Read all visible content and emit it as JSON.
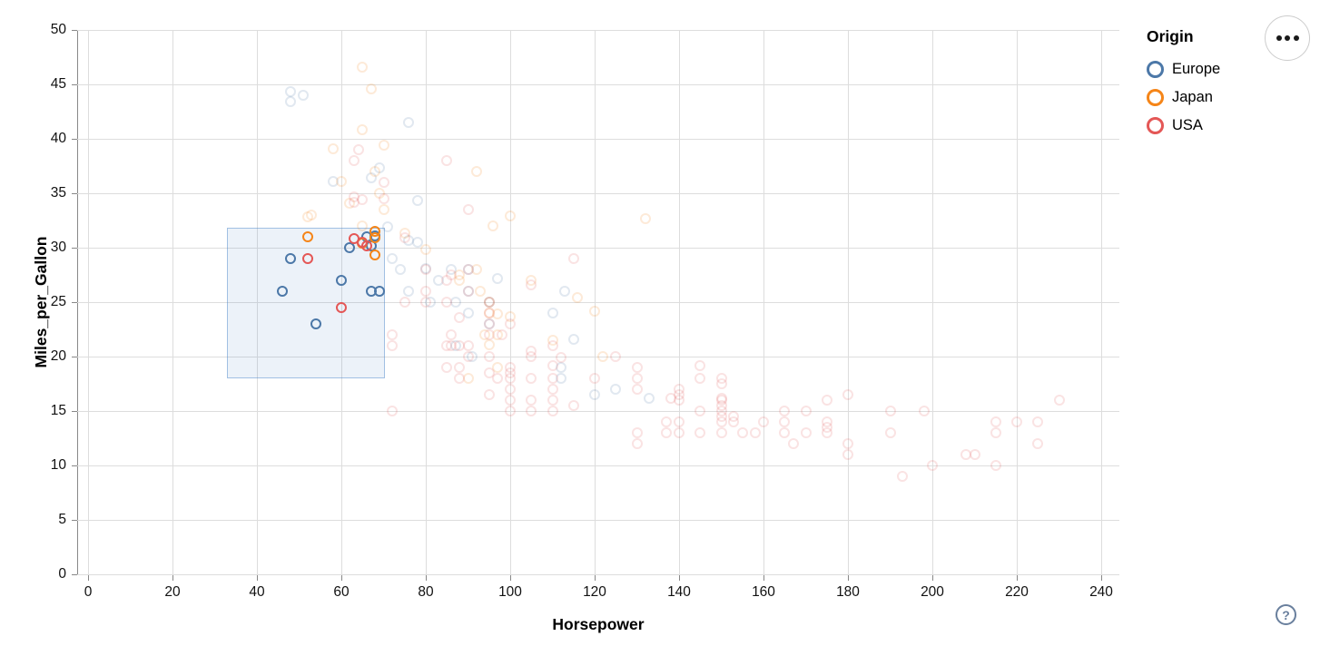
{
  "legend": {
    "title": "Origin",
    "items": [
      {
        "label": "Europe",
        "color": "#4c78a8"
      },
      {
        "label": "Japan",
        "color": "#f58518"
      },
      {
        "label": "USA",
        "color": "#e45756"
      }
    ]
  },
  "controls": {
    "menu_button": "ellipsis-menu",
    "help_label": "?"
  },
  "colors": {
    "europe": "#4c78a8",
    "japan": "#f58518",
    "usa": "#e45756",
    "grid": "#dddddd",
    "axis": "#888888",
    "brush_fill": "rgba(70,130,200,0.10)",
    "brush_stroke": "rgba(70,130,200,0.45)",
    "help_icon": "#697f9d"
  },
  "chart_data": {
    "type": "scatter",
    "title": "",
    "xlabel": "Horsepower",
    "ylabel": "Miles_per_Gallon",
    "xlim": [
      0,
      240
    ],
    "ylim": [
      0,
      50
    ],
    "x_ticks": [
      0,
      20,
      40,
      60,
      80,
      100,
      120,
      140,
      160,
      180,
      200,
      220,
      240
    ],
    "y_ticks": [
      0,
      5,
      10,
      15,
      20,
      25,
      30,
      35,
      40,
      45,
      50
    ],
    "grid": true,
    "legend_position": "top-right",
    "series": [
      {
        "name": "Europe",
        "color": "#4c78a8"
      },
      {
        "name": "Japan",
        "color": "#f58518"
      },
      {
        "name": "USA",
        "color": "#e45756"
      }
    ],
    "brush_selection": {
      "x": [
        33,
        70
      ],
      "y": [
        18.2,
        31.8
      ]
    },
    "point_format": [
      "horsepower",
      "miles_per_gallon",
      "origin(E|J|U)",
      "selected(1|0)"
    ],
    "points": [
      [
        46,
        26,
        "E",
        1
      ],
      [
        48,
        29,
        "E",
        1
      ],
      [
        54,
        23,
        "E",
        1
      ],
      [
        60,
        27,
        "E",
        1
      ],
      [
        62,
        30,
        "E",
        1
      ],
      [
        66,
        31,
        "E",
        1
      ],
      [
        67,
        30.2,
        "E",
        1
      ],
      [
        67,
        26,
        "E",
        1
      ],
      [
        68,
        31.1,
        "E",
        1
      ],
      [
        69,
        26,
        "E",
        1
      ],
      [
        52,
        31,
        "J",
        1
      ],
      [
        65,
        30.4,
        "J",
        1
      ],
      [
        68,
        31.5,
        "J",
        1
      ],
      [
        68,
        30.9,
        "J",
        1
      ],
      [
        68,
        29.3,
        "J",
        1
      ],
      [
        52,
        29,
        "U",
        1
      ],
      [
        60,
        24.5,
        "U",
        1
      ],
      [
        63,
        30.8,
        "U",
        1
      ],
      [
        65,
        30.5,
        "U",
        1
      ],
      [
        66,
        30.2,
        "U",
        1
      ],
      [
        48,
        44.3,
        "E",
        0
      ],
      [
        48,
        43.4,
        "E",
        0
      ],
      [
        51,
        44,
        "E",
        0
      ],
      [
        58,
        36.1,
        "E",
        0
      ],
      [
        67,
        36.4,
        "E",
        0
      ],
      [
        69,
        37.3,
        "E",
        0
      ],
      [
        71,
        31.9,
        "E",
        0
      ],
      [
        72,
        29,
        "E",
        0
      ],
      [
        74,
        28,
        "E",
        0
      ],
      [
        76,
        41.5,
        "E",
        0
      ],
      [
        76,
        30.7,
        "E",
        0
      ],
      [
        76,
        26,
        "E",
        0
      ],
      [
        78,
        34.3,
        "E",
        0
      ],
      [
        78,
        30.5,
        "E",
        0
      ],
      [
        80,
        28.1,
        "E",
        0
      ],
      [
        81,
        25,
        "E",
        0
      ],
      [
        83,
        27,
        "E",
        0
      ],
      [
        86,
        28,
        "E",
        0
      ],
      [
        87,
        25,
        "E",
        0
      ],
      [
        87,
        21,
        "E",
        0
      ],
      [
        90,
        24,
        "E",
        0
      ],
      [
        90,
        26,
        "E",
        0
      ],
      [
        90,
        28,
        "E",
        0
      ],
      [
        91,
        20,
        "E",
        0
      ],
      [
        95,
        23,
        "E",
        0
      ],
      [
        95,
        25,
        "E",
        0
      ],
      [
        97,
        27.2,
        "E",
        0
      ],
      [
        110,
        24,
        "E",
        0
      ],
      [
        112,
        18,
        "E",
        0
      ],
      [
        112,
        19,
        "E",
        0
      ],
      [
        113,
        26,
        "E",
        0
      ],
      [
        115,
        21.6,
        "E",
        0
      ],
      [
        120,
        16.5,
        "E",
        0
      ],
      [
        125,
        17,
        "E",
        0
      ],
      [
        133,
        16.2,
        "E",
        0
      ],
      [
        52,
        32.8,
        "J",
        0
      ],
      [
        53,
        33,
        "J",
        0
      ],
      [
        58,
        39.1,
        "J",
        0
      ],
      [
        60,
        36.1,
        "J",
        0
      ],
      [
        62,
        34.1,
        "J",
        0
      ],
      [
        65,
        46.6,
        "J",
        0
      ],
      [
        65,
        40.8,
        "J",
        0
      ],
      [
        65,
        32,
        "J",
        0
      ],
      [
        67,
        44.6,
        "J",
        0
      ],
      [
        68,
        37,
        "J",
        0
      ],
      [
        69,
        35,
        "J",
        0
      ],
      [
        70,
        39.4,
        "J",
        0
      ],
      [
        70,
        33.5,
        "J",
        0
      ],
      [
        75,
        31.3,
        "J",
        0
      ],
      [
        80,
        29.8,
        "J",
        0
      ],
      [
        88,
        27,
        "J",
        0
      ],
      [
        88,
        27.5,
        "J",
        0
      ],
      [
        90,
        18,
        "J",
        0
      ],
      [
        92,
        37,
        "J",
        0
      ],
      [
        92,
        28,
        "J",
        0
      ],
      [
        93,
        26,
        "J",
        0
      ],
      [
        94,
        22,
        "J",
        0
      ],
      [
        95,
        24,
        "J",
        0
      ],
      [
        95,
        25,
        "J",
        0
      ],
      [
        95,
        21.1,
        "J",
        0
      ],
      [
        96,
        32,
        "J",
        0
      ],
      [
        97,
        23.9,
        "J",
        0
      ],
      [
        97,
        22,
        "J",
        0
      ],
      [
        97,
        19,
        "J",
        0
      ],
      [
        100,
        32.9,
        "J",
        0
      ],
      [
        100,
        23.7,
        "J",
        0
      ],
      [
        105,
        27,
        "J",
        0
      ],
      [
        110,
        21.5,
        "J",
        0
      ],
      [
        116,
        25.4,
        "J",
        0
      ],
      [
        120,
        24.2,
        "J",
        0
      ],
      [
        122,
        20,
        "J",
        0
      ],
      [
        132,
        32.7,
        "J",
        0
      ],
      [
        63,
        38,
        "U",
        0
      ],
      [
        63,
        34.7,
        "U",
        0
      ],
      [
        63,
        34.2,
        "U",
        0
      ],
      [
        64,
        39,
        "U",
        0
      ],
      [
        65,
        34.4,
        "U",
        0
      ],
      [
        70,
        36,
        "U",
        0
      ],
      [
        70,
        34.5,
        "U",
        0
      ],
      [
        72,
        22,
        "U",
        0
      ],
      [
        72,
        21,
        "U",
        0
      ],
      [
        72,
        15,
        "U",
        0
      ],
      [
        75,
        30.9,
        "U",
        0
      ],
      [
        75,
        25,
        "U",
        0
      ],
      [
        80,
        25,
        "U",
        0
      ],
      [
        80,
        26,
        "U",
        0
      ],
      [
        80,
        28,
        "U",
        0
      ],
      [
        85,
        38,
        "U",
        0
      ],
      [
        85,
        21,
        "U",
        0
      ],
      [
        85,
        19,
        "U",
        0
      ],
      [
        85,
        25,
        "U",
        0
      ],
      [
        85,
        27,
        "U",
        0
      ],
      [
        86,
        21,
        "U",
        0
      ],
      [
        86,
        22,
        "U",
        0
      ],
      [
        86,
        27.5,
        "U",
        0
      ],
      [
        88,
        18,
        "U",
        0
      ],
      [
        88,
        19,
        "U",
        0
      ],
      [
        88,
        21,
        "U",
        0
      ],
      [
        88,
        23.6,
        "U",
        0
      ],
      [
        90,
        20,
        "U",
        0
      ],
      [
        90,
        21,
        "U",
        0
      ],
      [
        90,
        28,
        "U",
        0
      ],
      [
        90,
        26,
        "U",
        0
      ],
      [
        90,
        33.5,
        "U",
        0
      ],
      [
        95,
        22,
        "U",
        0
      ],
      [
        95,
        23,
        "U",
        0
      ],
      [
        95,
        24,
        "U",
        0
      ],
      [
        95,
        25,
        "U",
        0
      ],
      [
        95,
        20,
        "U",
        0
      ],
      [
        95,
        18.5,
        "U",
        0
      ],
      [
        95,
        16.5,
        "U",
        0
      ],
      [
        97,
        18,
        "U",
        0
      ],
      [
        98,
        22,
        "U",
        0
      ],
      [
        100,
        19,
        "U",
        0
      ],
      [
        100,
        18,
        "U",
        0
      ],
      [
        100,
        18.5,
        "U",
        0
      ],
      [
        100,
        16,
        "U",
        0
      ],
      [
        100,
        17,
        "U",
        0
      ],
      [
        100,
        15,
        "U",
        0
      ],
      [
        100,
        23,
        "U",
        0
      ],
      [
        105,
        18,
        "U",
        0
      ],
      [
        105,
        16,
        "U",
        0
      ],
      [
        105,
        15,
        "U",
        0
      ],
      [
        105,
        20,
        "U",
        0
      ],
      [
        105,
        20.5,
        "U",
        0
      ],
      [
        105,
        26.6,
        "U",
        0
      ],
      [
        110,
        18,
        "U",
        0
      ],
      [
        110,
        17,
        "U",
        0
      ],
      [
        110,
        16,
        "U",
        0
      ],
      [
        110,
        21,
        "U",
        0
      ],
      [
        110,
        15,
        "U",
        0
      ],
      [
        110,
        19.2,
        "U",
        0
      ],
      [
        112,
        19.9,
        "U",
        0
      ],
      [
        115,
        29,
        "U",
        0
      ],
      [
        115,
        15.5,
        "U",
        0
      ],
      [
        120,
        18,
        "U",
        0
      ],
      [
        125,
        20,
        "U",
        0
      ],
      [
        130,
        18,
        "U",
        0
      ],
      [
        130,
        13,
        "U",
        0
      ],
      [
        130,
        12,
        "U",
        0
      ],
      [
        130,
        17,
        "U",
        0
      ],
      [
        130,
        19,
        "U",
        0
      ],
      [
        137,
        13,
        "U",
        0
      ],
      [
        137,
        14,
        "U",
        0
      ],
      [
        138,
        16.2,
        "U",
        0
      ],
      [
        140,
        17,
        "U",
        0
      ],
      [
        140,
        16,
        "U",
        0
      ],
      [
        140,
        13,
        "U",
        0
      ],
      [
        140,
        14,
        "U",
        0
      ],
      [
        140,
        16.5,
        "U",
        0
      ],
      [
        145,
        13,
        "U",
        0
      ],
      [
        145,
        15,
        "U",
        0
      ],
      [
        145,
        18,
        "U",
        0
      ],
      [
        145,
        19.2,
        "U",
        0
      ],
      [
        150,
        18,
        "U",
        0
      ],
      [
        150,
        16,
        "U",
        0
      ],
      [
        150,
        15,
        "U",
        0
      ],
      [
        150,
        15.5,
        "U",
        0
      ],
      [
        150,
        14,
        "U",
        0
      ],
      [
        150,
        14.5,
        "U",
        0
      ],
      [
        150,
        13,
        "U",
        0
      ],
      [
        150,
        17.5,
        "U",
        0
      ],
      [
        150,
        16.2,
        "U",
        0
      ],
      [
        153,
        14,
        "U",
        0
      ],
      [
        153,
        14.5,
        "U",
        0
      ],
      [
        155,
        13,
        "U",
        0
      ],
      [
        158,
        13,
        "U",
        0
      ],
      [
        160,
        14,
        "U",
        0
      ],
      [
        165,
        15,
        "U",
        0
      ],
      [
        165,
        14,
        "U",
        0
      ],
      [
        165,
        13,
        "U",
        0
      ],
      [
        167,
        12,
        "U",
        0
      ],
      [
        170,
        15,
        "U",
        0
      ],
      [
        170,
        13,
        "U",
        0
      ],
      [
        175,
        14,
        "U",
        0
      ],
      [
        175,
        13,
        "U",
        0
      ],
      [
        175,
        13.5,
        "U",
        0
      ],
      [
        175,
        16,
        "U",
        0
      ],
      [
        180,
        12,
        "U",
        0
      ],
      [
        180,
        11,
        "U",
        0
      ],
      [
        180,
        16.5,
        "U",
        0
      ],
      [
        190,
        15,
        "U",
        0
      ],
      [
        190,
        13,
        "U",
        0
      ],
      [
        193,
        9,
        "U",
        0
      ],
      [
        198,
        15,
        "U",
        0
      ],
      [
        200,
        10,
        "U",
        0
      ],
      [
        208,
        11,
        "U",
        0
      ],
      [
        210,
        11,
        "U",
        0
      ],
      [
        215,
        14,
        "U",
        0
      ],
      [
        215,
        10,
        "U",
        0
      ],
      [
        215,
        13,
        "U",
        0
      ],
      [
        220,
        14,
        "U",
        0
      ],
      [
        225,
        14,
        "U",
        0
      ],
      [
        225,
        12,
        "U",
        0
      ],
      [
        230,
        16,
        "U",
        0
      ]
    ]
  }
}
